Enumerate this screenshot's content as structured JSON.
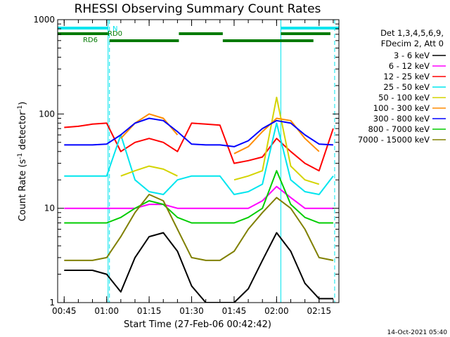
{
  "chart_data": {
    "type": "line",
    "title": "RHESSI Observing Summary Count Rates",
    "xlabel": "Start Time (27-Feb-06 00:42:42)",
    "ylabel_main": "Count Rate (s",
    "ylabel_sup1": "-1",
    "ylabel_mid": " detector",
    "ylabel_sup2": "-1",
    "ylabel_end": ")",
    "yscale": "log",
    "ylim": [
      1,
      1000
    ],
    "xlim": [
      "00:42:42",
      "02:22:00"
    ],
    "x_ticks": [
      "00:45",
      "01:00",
      "01:15",
      "01:30",
      "01:45",
      "02:00",
      "02:15"
    ],
    "y_ticks": [
      "1",
      "10",
      "100",
      "1000"
    ],
    "grid": false,
    "legend_header": [
      "Det 1,3,4,5,6,9,",
      "FDecim 2, Att 0"
    ],
    "legend_position": "right",
    "flags": [
      {
        "label": "N",
        "color": "#00e5ee",
        "segments": [
          [
            "00:42:42",
            "01:00:30"
          ],
          [
            "02:01:30",
            "02:22:00"
          ]
        ]
      },
      {
        "label": "RD0",
        "color": "#007a00",
        "segments": [
          [
            "00:42:42",
            "01:00:30"
          ],
          [
            "01:25:30",
            "01:41:00"
          ],
          [
            "02:01:30",
            "02:19:00"
          ]
        ]
      },
      {
        "label": "RD6",
        "color": "#007a00",
        "segments": [
          [
            "01:01:00",
            "01:25:30"
          ],
          [
            "01:41:00",
            "02:13:00"
          ]
        ]
      }
    ],
    "night_markers": [
      "01:00:30",
      "02:01:30"
    ],
    "saa_markers": [
      "01:01:00",
      "02:20:30"
    ],
    "series": [
      {
        "name": "3 - 6 keV",
        "color": "#000000",
        "x": [
          "00:45",
          "00:50",
          "00:55",
          "01:00",
          "01:05",
          "01:10",
          "01:15",
          "01:20",
          "01:25",
          "01:30",
          "01:35",
          "01:40",
          "01:45",
          "01:50",
          "01:55",
          "02:00",
          "02:05",
          "02:10",
          "02:15",
          "02:20"
        ],
        "y": [
          2.2,
          2.2,
          2.2,
          2.0,
          1.3,
          3.0,
          5.0,
          5.5,
          3.5,
          1.5,
          1.0,
          1.0,
          1.0,
          1.4,
          2.8,
          5.5,
          3.5,
          1.6,
          1.1,
          1.1
        ]
      },
      {
        "name": "6 - 12 keV",
        "color": "#ff00ff",
        "x": [
          "00:45",
          "00:50",
          "00:55",
          "01:00",
          "01:05",
          "01:10",
          "01:15",
          "01:20",
          "01:25",
          "01:30",
          "01:35",
          "01:40",
          "01:45",
          "01:50",
          "01:55",
          "02:00",
          "02:05",
          "02:10",
          "02:15",
          "02:20"
        ],
        "y": [
          10,
          10,
          10,
          10,
          10,
          10,
          11,
          11,
          10,
          10,
          10,
          10,
          10,
          10,
          12,
          17,
          13,
          10,
          10,
          10
        ]
      },
      {
        "name": "12 - 25 keV",
        "color": "#ff0000",
        "x": [
          "00:45",
          "00:50",
          "00:55",
          "01:00",
          "01:05",
          "01:10",
          "01:15",
          "01:20",
          "01:25",
          "01:30",
          "01:35",
          "01:40",
          "01:45",
          "01:50",
          "01:55",
          "02:00",
          "02:05",
          "02:10",
          "02:15",
          "02:20"
        ],
        "y": [
          72,
          74,
          78,
          80,
          40,
          50,
          55,
          50,
          40,
          80,
          78,
          76,
          30,
          32,
          35,
          55,
          40,
          30,
          25,
          70
        ]
      },
      {
        "name": "25 - 50 keV",
        "color": "#00e5ee",
        "x": [
          "00:45",
          "00:50",
          "00:55",
          "01:00",
          "01:05",
          "01:10",
          "01:15",
          "01:20",
          "01:25",
          "01:30",
          "01:35",
          "01:40",
          "01:45",
          "01:50",
          "01:55",
          "02:00",
          "02:05",
          "02:10",
          "02:15",
          "02:20"
        ],
        "y": [
          22,
          22,
          22,
          22,
          60,
          20,
          15,
          14,
          20,
          22,
          22,
          22,
          14,
          15,
          18,
          80,
          20,
          15,
          14,
          22
        ]
      },
      {
        "name": "50 - 100 keV",
        "color": "#d4d400",
        "x": [
          "00:45",
          "00:50",
          "00:55",
          "01:00",
          "01:05",
          "01:10",
          "01:15",
          "01:20",
          "01:25",
          "01:30",
          "01:35",
          "01:40",
          "01:45",
          "01:50",
          "01:55",
          "02:00",
          "02:05",
          "02:10",
          "02:15",
          "02:20"
        ],
        "y": [
          null,
          null,
          null,
          null,
          22,
          25,
          28,
          26,
          22,
          null,
          null,
          null,
          20,
          22,
          25,
          150,
          28,
          20,
          18,
          null
        ]
      },
      {
        "name": "100 - 300 keV",
        "color": "#ff8c00",
        "x": [
          "00:45",
          "00:50",
          "00:55",
          "01:00",
          "01:05",
          "01:10",
          "01:15",
          "01:20",
          "01:25",
          "01:30",
          "01:35",
          "01:40",
          "01:45",
          "01:50",
          "01:55",
          "02:00",
          "02:05",
          "02:10",
          "02:15",
          "02:20"
        ],
        "y": [
          null,
          null,
          null,
          null,
          55,
          80,
          100,
          90,
          60,
          null,
          null,
          null,
          38,
          45,
          65,
          90,
          85,
          55,
          40,
          null
        ]
      },
      {
        "name": "300 - 800 keV",
        "color": "#0000ff",
        "x": [
          "00:45",
          "00:50",
          "00:55",
          "01:00",
          "01:05",
          "01:10",
          "01:15",
          "01:20",
          "01:25",
          "01:30",
          "01:35",
          "01:40",
          "01:45",
          "01:50",
          "01:55",
          "02:00",
          "02:05",
          "02:10",
          "02:15",
          "02:20"
        ],
        "y": [
          47,
          47,
          47,
          48,
          60,
          80,
          90,
          85,
          65,
          48,
          47,
          47,
          45,
          52,
          70,
          85,
          80,
          60,
          48,
          47
        ]
      },
      {
        "name": "800 - 7000 keV",
        "color": "#00cc00",
        "x": [
          "00:45",
          "00:50",
          "00:55",
          "01:00",
          "01:05",
          "01:10",
          "01:15",
          "01:20",
          "01:25",
          "01:30",
          "01:35",
          "01:40",
          "01:45",
          "01:50",
          "01:55",
          "02:00",
          "02:05",
          "02:10",
          "02:15",
          "02:20"
        ],
        "y": [
          7,
          7,
          7,
          7,
          8,
          10,
          12,
          11,
          8,
          7,
          7,
          7,
          7,
          8,
          10,
          25,
          11,
          8,
          7,
          7
        ]
      },
      {
        "name": "7000 - 15000 keV",
        "color": "#808000",
        "x": [
          "00:45",
          "00:50",
          "00:55",
          "01:00",
          "01:05",
          "01:10",
          "01:15",
          "01:20",
          "01:25",
          "01:30",
          "01:35",
          "01:40",
          "01:45",
          "01:50",
          "01:55",
          "02:00",
          "02:05",
          "02:10",
          "02:15",
          "02:20"
        ],
        "y": [
          2.8,
          2.8,
          2.8,
          3.0,
          5.0,
          9,
          14,
          12,
          6,
          3.0,
          2.8,
          2.8,
          3.5,
          6,
          9,
          13,
          10,
          6,
          3.0,
          2.8
        ]
      }
    ]
  },
  "timestamp": "14-Oct-2021 05:40"
}
